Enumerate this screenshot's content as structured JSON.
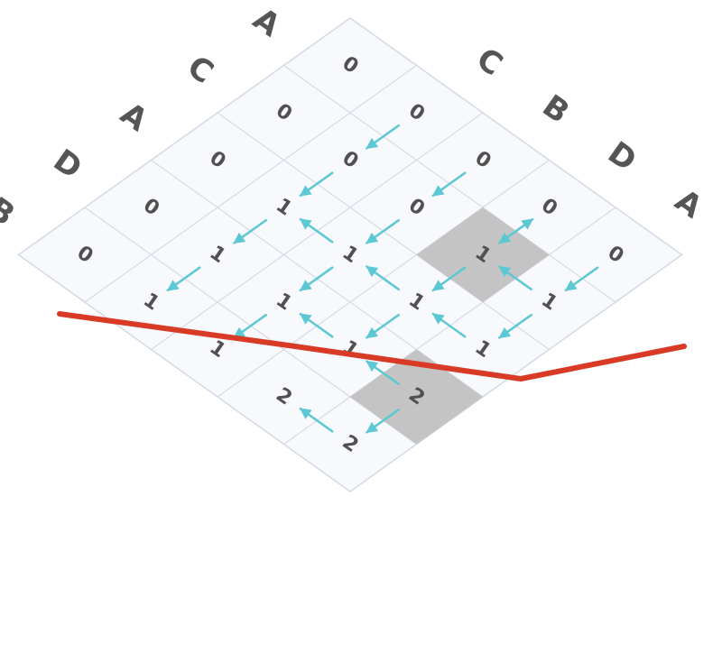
{
  "sequence_top": [
    "B",
    "D",
    "A",
    "C",
    "A"
  ],
  "sequence_side": [
    "C",
    "B",
    "D",
    "A"
  ],
  "cells": [
    [
      "0",
      "0",
      "0",
      "0",
      "0"
    ],
    [
      "0",
      "0",
      "0",
      "1",
      "1"
    ],
    [
      "0",
      "1",
      "1",
      "1",
      "1"
    ],
    [
      "0",
      "1",
      "1",
      "1",
      "2"
    ],
    [
      "0",
      "1",
      "1",
      "2",
      "2"
    ]
  ],
  "highlighted_cells": [
    [
      1,
      3
    ],
    [
      3,
      4
    ]
  ],
  "arrows": [
    {
      "from": [
        0,
        1
      ],
      "to": [
        1,
        1
      ]
    },
    {
      "from": [
        0,
        2
      ],
      "to": [
        1,
        2
      ]
    },
    {
      "from": [
        0,
        3
      ],
      "to": [
        1,
        3
      ]
    },
    {
      "from": [
        0,
        4
      ],
      "to": [
        1,
        4
      ]
    },
    {
      "from": [
        1,
        3
      ],
      "to": [
        0,
        3
      ]
    },
    {
      "from": [
        1,
        4
      ],
      "to": [
        1,
        3
      ]
    },
    {
      "from": [
        1,
        3
      ],
      "to": [
        2,
        3
      ]
    },
    {
      "from": [
        1,
        4
      ],
      "to": [
        2,
        4
      ]
    },
    {
      "from": [
        1,
        1
      ],
      "to": [
        2,
        1
      ]
    },
    {
      "from": [
        1,
        2
      ],
      "to": [
        2,
        2
      ]
    },
    {
      "from": [
        2,
        2
      ],
      "to": [
        2,
        1
      ]
    },
    {
      "from": [
        2,
        3
      ],
      "to": [
        2,
        2
      ]
    },
    {
      "from": [
        2,
        4
      ],
      "to": [
        2,
        3
      ]
    },
    {
      "from": [
        2,
        1
      ],
      "to": [
        3,
        1
      ]
    },
    {
      "from": [
        2,
        2
      ],
      "to": [
        3,
        2
      ]
    },
    {
      "from": [
        2,
        3
      ],
      "to": [
        3,
        3
      ]
    },
    {
      "from": [
        3,
        3
      ],
      "to": [
        3,
        2
      ]
    },
    {
      "from": [
        3,
        4
      ],
      "to": [
        3,
        3
      ]
    },
    {
      "from": [
        3,
        4
      ],
      "to": [
        4,
        4
      ]
    },
    {
      "from": [
        4,
        4
      ],
      "to": [
        4,
        3
      ]
    },
    {
      "from": [
        3,
        1
      ],
      "to": [
        4,
        1
      ]
    },
    {
      "from": [
        3,
        2
      ],
      "to": [
        4,
        2
      ]
    }
  ],
  "colors": {
    "grid_fill": "#f8f9fd",
    "grid_line": "#d4d9e4",
    "highlight_fill": "#c4c4c4",
    "arrow": "#5bc8d3",
    "trace_line": "#d93a26",
    "letter": "#555555",
    "value": "#505050"
  }
}
